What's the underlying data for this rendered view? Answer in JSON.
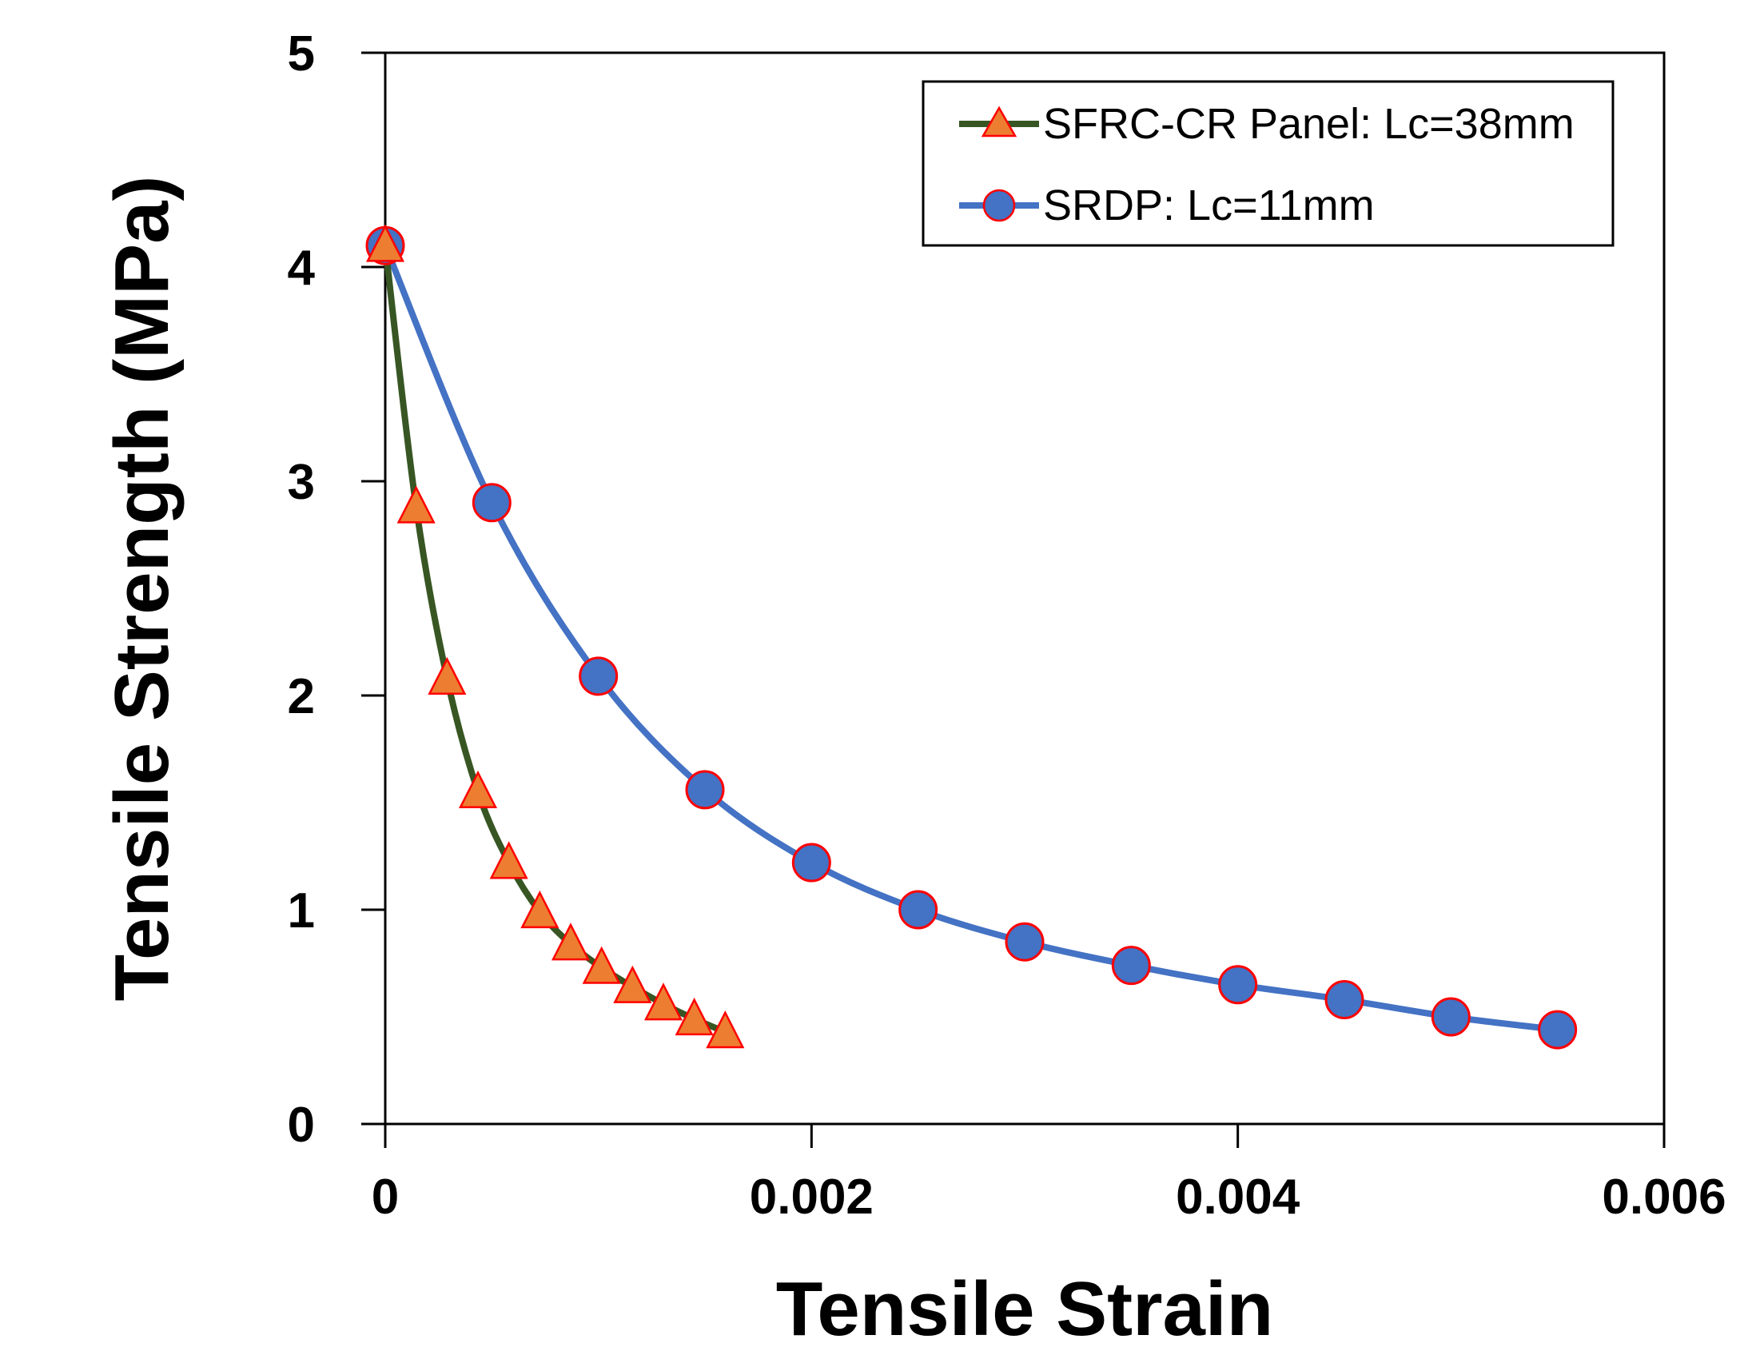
{
  "chart_data": {
    "type": "line",
    "title": "",
    "xlabel": "Tensile Strain",
    "ylabel": "Tensile Strength (MPa)",
    "xlim": [
      0,
      0.006
    ],
    "ylim": [
      0,
      5
    ],
    "x_ticks": [
      "0",
      "0.002",
      "0.004",
      "0.006"
    ],
    "y_ticks": [
      "0",
      "1",
      "2",
      "3",
      "4",
      "5"
    ],
    "grid": false,
    "legend_position": "top-right",
    "series": [
      {
        "name": "SFRC-CR Panel: Lc=38mm",
        "line_color": "#375623",
        "marker": "triangle",
        "marker_fill": "#ED7D31",
        "marker_edge": "#FF0000",
        "x": [
          0.0,
          0.000145,
          0.00029,
          0.000435,
          0.00058,
          0.000725,
          0.00087,
          0.001015,
          0.00116,
          0.001305,
          0.00145,
          0.001595
        ],
        "y": [
          4.1,
          2.88,
          2.08,
          1.55,
          1.22,
          0.99,
          0.84,
          0.73,
          0.64,
          0.56,
          0.49,
          0.43
        ]
      },
      {
        "name": "SRDP: Lc=11mm",
        "line_color": "#4472C4",
        "marker": "circle",
        "marker_fill": "#4472C4",
        "marker_edge": "#FF0000",
        "x": [
          0.0,
          0.0005,
          0.001,
          0.0015,
          0.002,
          0.0025,
          0.003,
          0.0035,
          0.004,
          0.0045,
          0.005,
          0.0055
        ],
        "y": [
          4.1,
          2.9,
          2.09,
          1.56,
          1.22,
          1.0,
          0.85,
          0.74,
          0.65,
          0.58,
          0.5,
          0.44
        ]
      }
    ]
  }
}
